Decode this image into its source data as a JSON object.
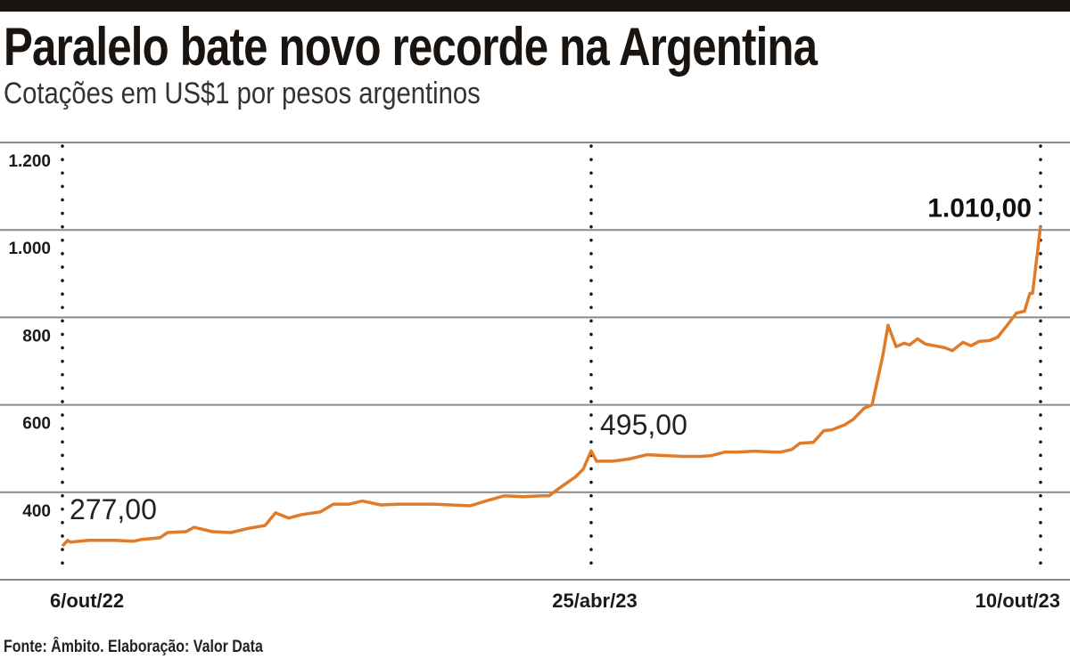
{
  "chart_data": {
    "type": "line",
    "title": "Paralelo bate novo recorde na Argentina",
    "subtitle": "Cotações em US$1 por pesos argentinos",
    "source": "Fonte: Âmbito. Elaboração: Valor Data",
    "xlabel": "",
    "ylabel": "",
    "ylim": [
      200,
      1200
    ],
    "yticks": [
      400,
      600,
      800,
      1000,
      1200
    ],
    "ytick_labels": [
      "400",
      "600",
      "800",
      "1.000",
      "1.200"
    ],
    "xlim": [
      "2022-10-06",
      "2023-10-10"
    ],
    "xticks": [
      "2022-10-06",
      "2023-04-25",
      "2023-10-10"
    ],
    "xtick_labels": [
      "6/out/22",
      "25/abr/23",
      "10/out/23"
    ],
    "grid": "horizontal",
    "marker_lines": "dotted vertical lines at x ticks",
    "line_color": "#e07b2a",
    "annotations": [
      {
        "x": "2022-10-06",
        "y": 277,
        "label": "277,00",
        "bold": false
      },
      {
        "x": "2023-04-25",
        "y": 495,
        "label": "495,00",
        "bold": false
      },
      {
        "x": "2023-10-10",
        "y": 1010,
        "label": "1.010,00",
        "bold": true
      }
    ],
    "series": [
      {
        "x": [
          "2022-10-06",
          "2022-10-08",
          "2022-10-09",
          "2022-10-16",
          "2022-10-26",
          "2022-11-02",
          "2022-11-05",
          "2022-11-12",
          "2022-11-15",
          "2022-11-22",
          "2022-11-25",
          "2022-12-02",
          "2022-12-09",
          "2022-12-16",
          "2022-12-22",
          "2022-12-26",
          "2022-12-31",
          "2023-01-05",
          "2023-01-12",
          "2023-01-17",
          "2023-01-23",
          "2023-01-28",
          "2023-02-04",
          "2023-02-11",
          "2023-02-18",
          "2023-02-24",
          "2023-03-03",
          "2023-03-10",
          "2023-03-16",
          "2023-03-23",
          "2023-03-30",
          "2023-04-06",
          "2023-04-09",
          "2023-04-13",
          "2023-04-19",
          "2023-04-22",
          "2023-04-25",
          "2023-04-27",
          "2023-05-03",
          "2023-05-09",
          "2023-05-16",
          "2023-05-23",
          "2023-05-29",
          "2023-06-05",
          "2023-06-09",
          "2023-06-14",
          "2023-06-19",
          "2023-06-25",
          "2023-07-02",
          "2023-07-05",
          "2023-07-09",
          "2023-07-12",
          "2023-07-17",
          "2023-07-21",
          "2023-07-24",
          "2023-07-29",
          "2023-08-01",
          "2023-08-05",
          "2023-08-08",
          "2023-08-12",
          "2023-08-14",
          "2023-08-17",
          "2023-08-20",
          "2023-08-22",
          "2023-08-25",
          "2023-08-28",
          "2023-09-04",
          "2023-09-07",
          "2023-09-11",
          "2023-09-14",
          "2023-09-17",
          "2023-09-21",
          "2023-09-24",
          "2023-09-28",
          "2023-10-01",
          "2023-10-04",
          "2023-10-06",
          "2023-10-07",
          "2023-10-09",
          "2023-10-10"
        ],
        "values": [
          277,
          290,
          286,
          290,
          290,
          288,
          292,
          296,
          308,
          310,
          320,
          310,
          308,
          318,
          324,
          353,
          341,
          349,
          355,
          373,
          373,
          380,
          371,
          373,
          373,
          373,
          371,
          369,
          380,
          392,
          390,
          392,
          392,
          410,
          435,
          453,
          495,
          471,
          471,
          476,
          486,
          484,
          482,
          482,
          484,
          492,
          492,
          494,
          492,
          492,
          498,
          512,
          514,
          541,
          543,
          555,
          567,
          592,
          600,
          712,
          782,
          733,
          741,
          737,
          751,
          739,
          731,
          724,
          743,
          735,
          745,
          747,
          755,
          786,
          810,
          814,
          855,
          855,
          957,
          1010
        ]
      }
    ]
  }
}
